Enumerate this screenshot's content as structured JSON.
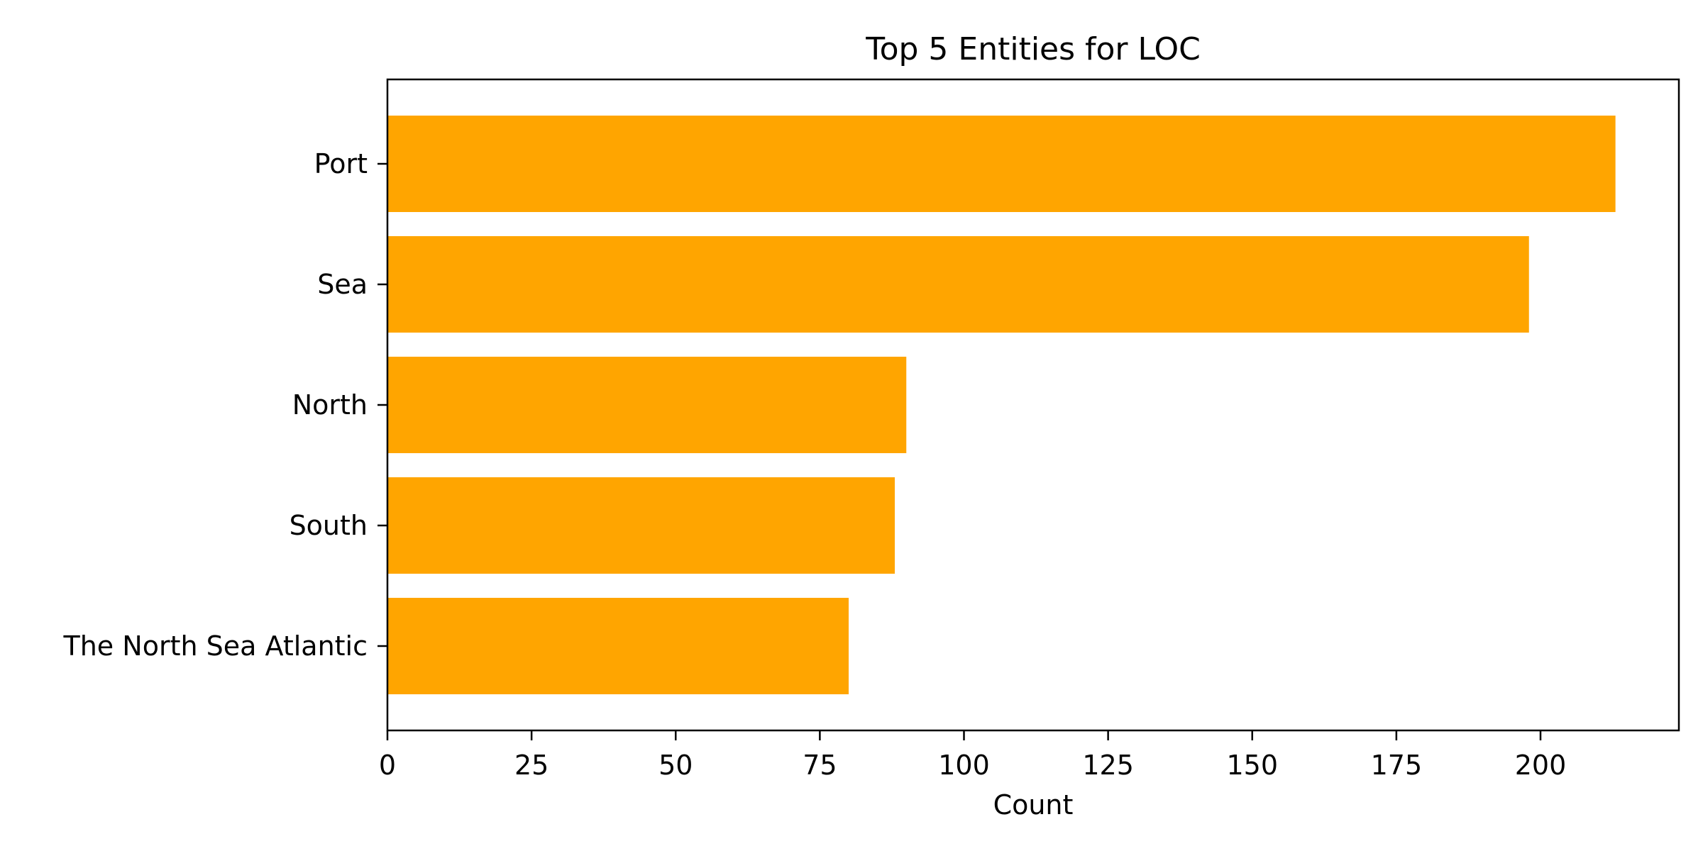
{
  "chart_data": {
    "type": "bar",
    "orientation": "horizontal",
    "title": "Top 5 Entities for LOC",
    "xlabel": "Count",
    "ylabel": "",
    "categories": [
      "Port",
      "Sea",
      "North",
      "South",
      "The North Sea Atlantic"
    ],
    "values": [
      213,
      198,
      90,
      88,
      80
    ],
    "xlim": [
      0,
      224
    ],
    "xticks": [
      0,
      25,
      50,
      75,
      100,
      125,
      150,
      175,
      200
    ],
    "grid": false,
    "legend": "none",
    "bar_color": "#FFA500"
  }
}
